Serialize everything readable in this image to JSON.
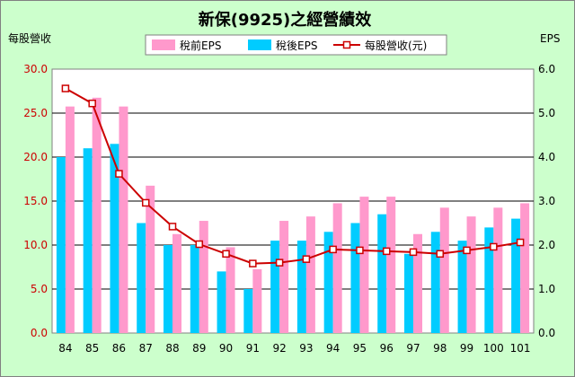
{
  "chart_data": {
    "type": "bar",
    "title": "新保(9925)之經營績效",
    "ylabel_left": "每股營收",
    "ylabel_right": "EPS",
    "categories": [
      "84",
      "85",
      "86",
      "87",
      "88",
      "89",
      "90",
      "91",
      "92",
      "93",
      "94",
      "95",
      "96",
      "97",
      "98",
      "99",
      "100",
      "101"
    ],
    "ylim_left": [
      0,
      30
    ],
    "ylim_right": [
      0,
      6
    ],
    "yticks_left": [
      "0.0",
      "5.0",
      "10.0",
      "15.0",
      "20.0",
      "25.0",
      "30.0"
    ],
    "yticks_right": [
      "0.0",
      "1.0",
      "2.0",
      "3.0",
      "4.0",
      "5.0",
      "6.0"
    ],
    "grid": "horizontal",
    "legend_position": "top",
    "series": [
      {
        "name": "稅前EPS",
        "kind": "bar",
        "axis": "right",
        "color": "#ff99cc",
        "values": [
          5.15,
          5.35,
          5.15,
          3.35,
          2.25,
          2.55,
          1.95,
          1.45,
          2.55,
          2.65,
          2.95,
          3.1,
          3.1,
          2.25,
          2.85,
          2.65,
          2.85,
          2.95
        ]
      },
      {
        "name": "稅後EPS",
        "kind": "bar",
        "axis": "right",
        "color": "#00ccff",
        "values": [
          4.0,
          4.2,
          4.3,
          2.5,
          2.0,
          2.0,
          1.4,
          1.0,
          2.1,
          2.1,
          2.3,
          2.5,
          2.7,
          1.8,
          2.3,
          2.1,
          2.4,
          2.6
        ]
      },
      {
        "name": "每股營收(元)",
        "kind": "line",
        "axis": "left",
        "color": "#cc0000",
        "values": [
          27.8,
          26.1,
          18.1,
          14.8,
          12.1,
          10.1,
          9.0,
          7.9,
          8.0,
          8.4,
          9.5,
          9.4,
          9.3,
          9.2,
          9.0,
          9.4,
          9.8,
          10.3
        ]
      }
    ],
    "colors": {
      "background": "#ccffcc",
      "plot": "#ffffff",
      "grid": "#000000",
      "left_tick": "#cc0000"
    }
  }
}
